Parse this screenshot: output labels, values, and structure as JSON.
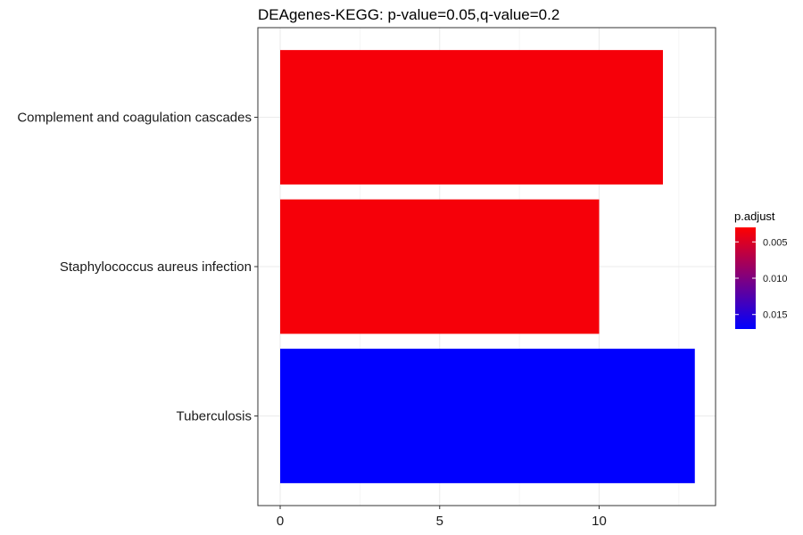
{
  "chart_data": {
    "type": "bar",
    "orientation": "horizontal",
    "title": "DEAgenes-KEGG: p-value=0.05,q-value=0.2",
    "xlabel": "",
    "ylabel": "",
    "categories": [
      "Complement and coagulation cascades",
      "Staphylococcus aureus infection",
      "Tuberculosis"
    ],
    "values": [
      12,
      10,
      13
    ],
    "p_adjust": [
      0.0035,
      0.0035,
      0.017
    ],
    "xlim": [
      -0.7,
      13.65
    ],
    "xticks": [
      0,
      5,
      10
    ],
    "grid": true,
    "legend": {
      "title": "p.adjust",
      "placement": "right",
      "range": [
        0.003,
        0.017
      ],
      "ticks": [
        0.005,
        0.01,
        0.015
      ],
      "tick_labels": [
        "0.005",
        "0.010",
        "0.015"
      ],
      "colors": {
        "low": "#ff0000",
        "high": "#0000ff"
      }
    }
  }
}
